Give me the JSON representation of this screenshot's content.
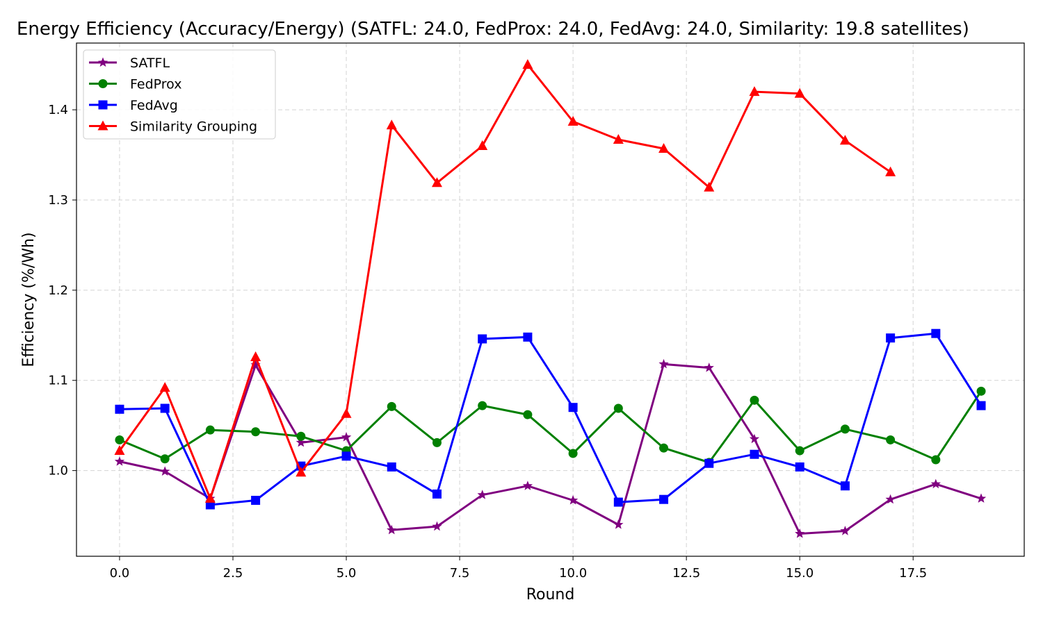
{
  "chart_data": {
    "type": "line",
    "title": "Energy Efficiency (Accuracy/Energy) (SATFL: 24.0, FedProx: 24.0, FedAvg: 24.0, Similarity: 19.8 satellites)",
    "xlabel": "Round",
    "ylabel": "Efficiency (%/Wh)",
    "xlim": [
      -0.95,
      19.95
    ],
    "ylim": [
      0.905,
      1.474
    ],
    "xticks": [
      "0.0",
      "2.5",
      "5.0",
      "7.5",
      "10.0",
      "12.5",
      "15.0",
      "17.5"
    ],
    "xtick_values": [
      0,
      2.5,
      5,
      7.5,
      10,
      12.5,
      15,
      17.5
    ],
    "yticks": [
      "1.0",
      "1.1",
      "1.2",
      "1.3",
      "1.4"
    ],
    "ytick_values": [
      1.0,
      1.1,
      1.2,
      1.3,
      1.4
    ],
    "grid": true,
    "legend_position": "top-left",
    "series": [
      {
        "name": "SATFL",
        "color": "#800080",
        "marker": "star",
        "x": [
          0,
          1,
          2,
          3,
          4,
          5,
          6,
          7,
          8,
          9,
          10,
          11,
          12,
          13,
          14,
          15,
          16,
          17,
          18,
          19
        ],
        "values": [
          1.01,
          0.999,
          0.969,
          1.117,
          1.031,
          1.037,
          0.934,
          0.938,
          0.973,
          0.983,
          0.967,
          0.94,
          1.118,
          1.114,
          1.035,
          0.93,
          0.933,
          0.968,
          0.985,
          0.969
        ]
      },
      {
        "name": "FedProx",
        "color": "#008000",
        "marker": "circle",
        "x": [
          0,
          1,
          2,
          3,
          4,
          5,
          6,
          7,
          8,
          9,
          10,
          11,
          12,
          13,
          14,
          15,
          16,
          17,
          18,
          19
        ],
        "values": [
          1.034,
          1.013,
          1.045,
          1.043,
          1.038,
          1.022,
          1.071,
          1.031,
          1.072,
          1.062,
          1.019,
          1.069,
          1.025,
          1.009,
          1.078,
          1.022,
          1.046,
          1.034,
          1.012,
          1.088
        ]
      },
      {
        "name": "FedAvg",
        "color": "#0000ff",
        "marker": "square",
        "x": [
          0,
          1,
          2,
          3,
          4,
          5,
          6,
          7,
          8,
          9,
          10,
          11,
          12,
          13,
          14,
          15,
          16,
          17,
          18,
          19
        ],
        "values": [
          1.068,
          1.069,
          0.962,
          0.967,
          1.005,
          1.016,
          1.004,
          0.974,
          1.146,
          1.148,
          1.07,
          0.965,
          0.968,
          1.008,
          1.018,
          1.004,
          0.983,
          1.147,
          1.152,
          1.072
        ]
      },
      {
        "name": "Similarity Grouping",
        "color": "#ff0000",
        "marker": "triangle",
        "x": [
          0,
          1,
          2,
          3,
          4,
          5,
          6,
          7,
          8,
          9,
          10,
          11,
          12,
          13,
          14,
          15,
          16,
          17
        ],
        "values": [
          1.022,
          1.092,
          0.969,
          1.126,
          0.998,
          1.063,
          1.383,
          1.319,
          1.36,
          1.45,
          1.387,
          1.367,
          1.357,
          1.314,
          1.42,
          1.418,
          1.366,
          1.331
        ]
      }
    ]
  }
}
